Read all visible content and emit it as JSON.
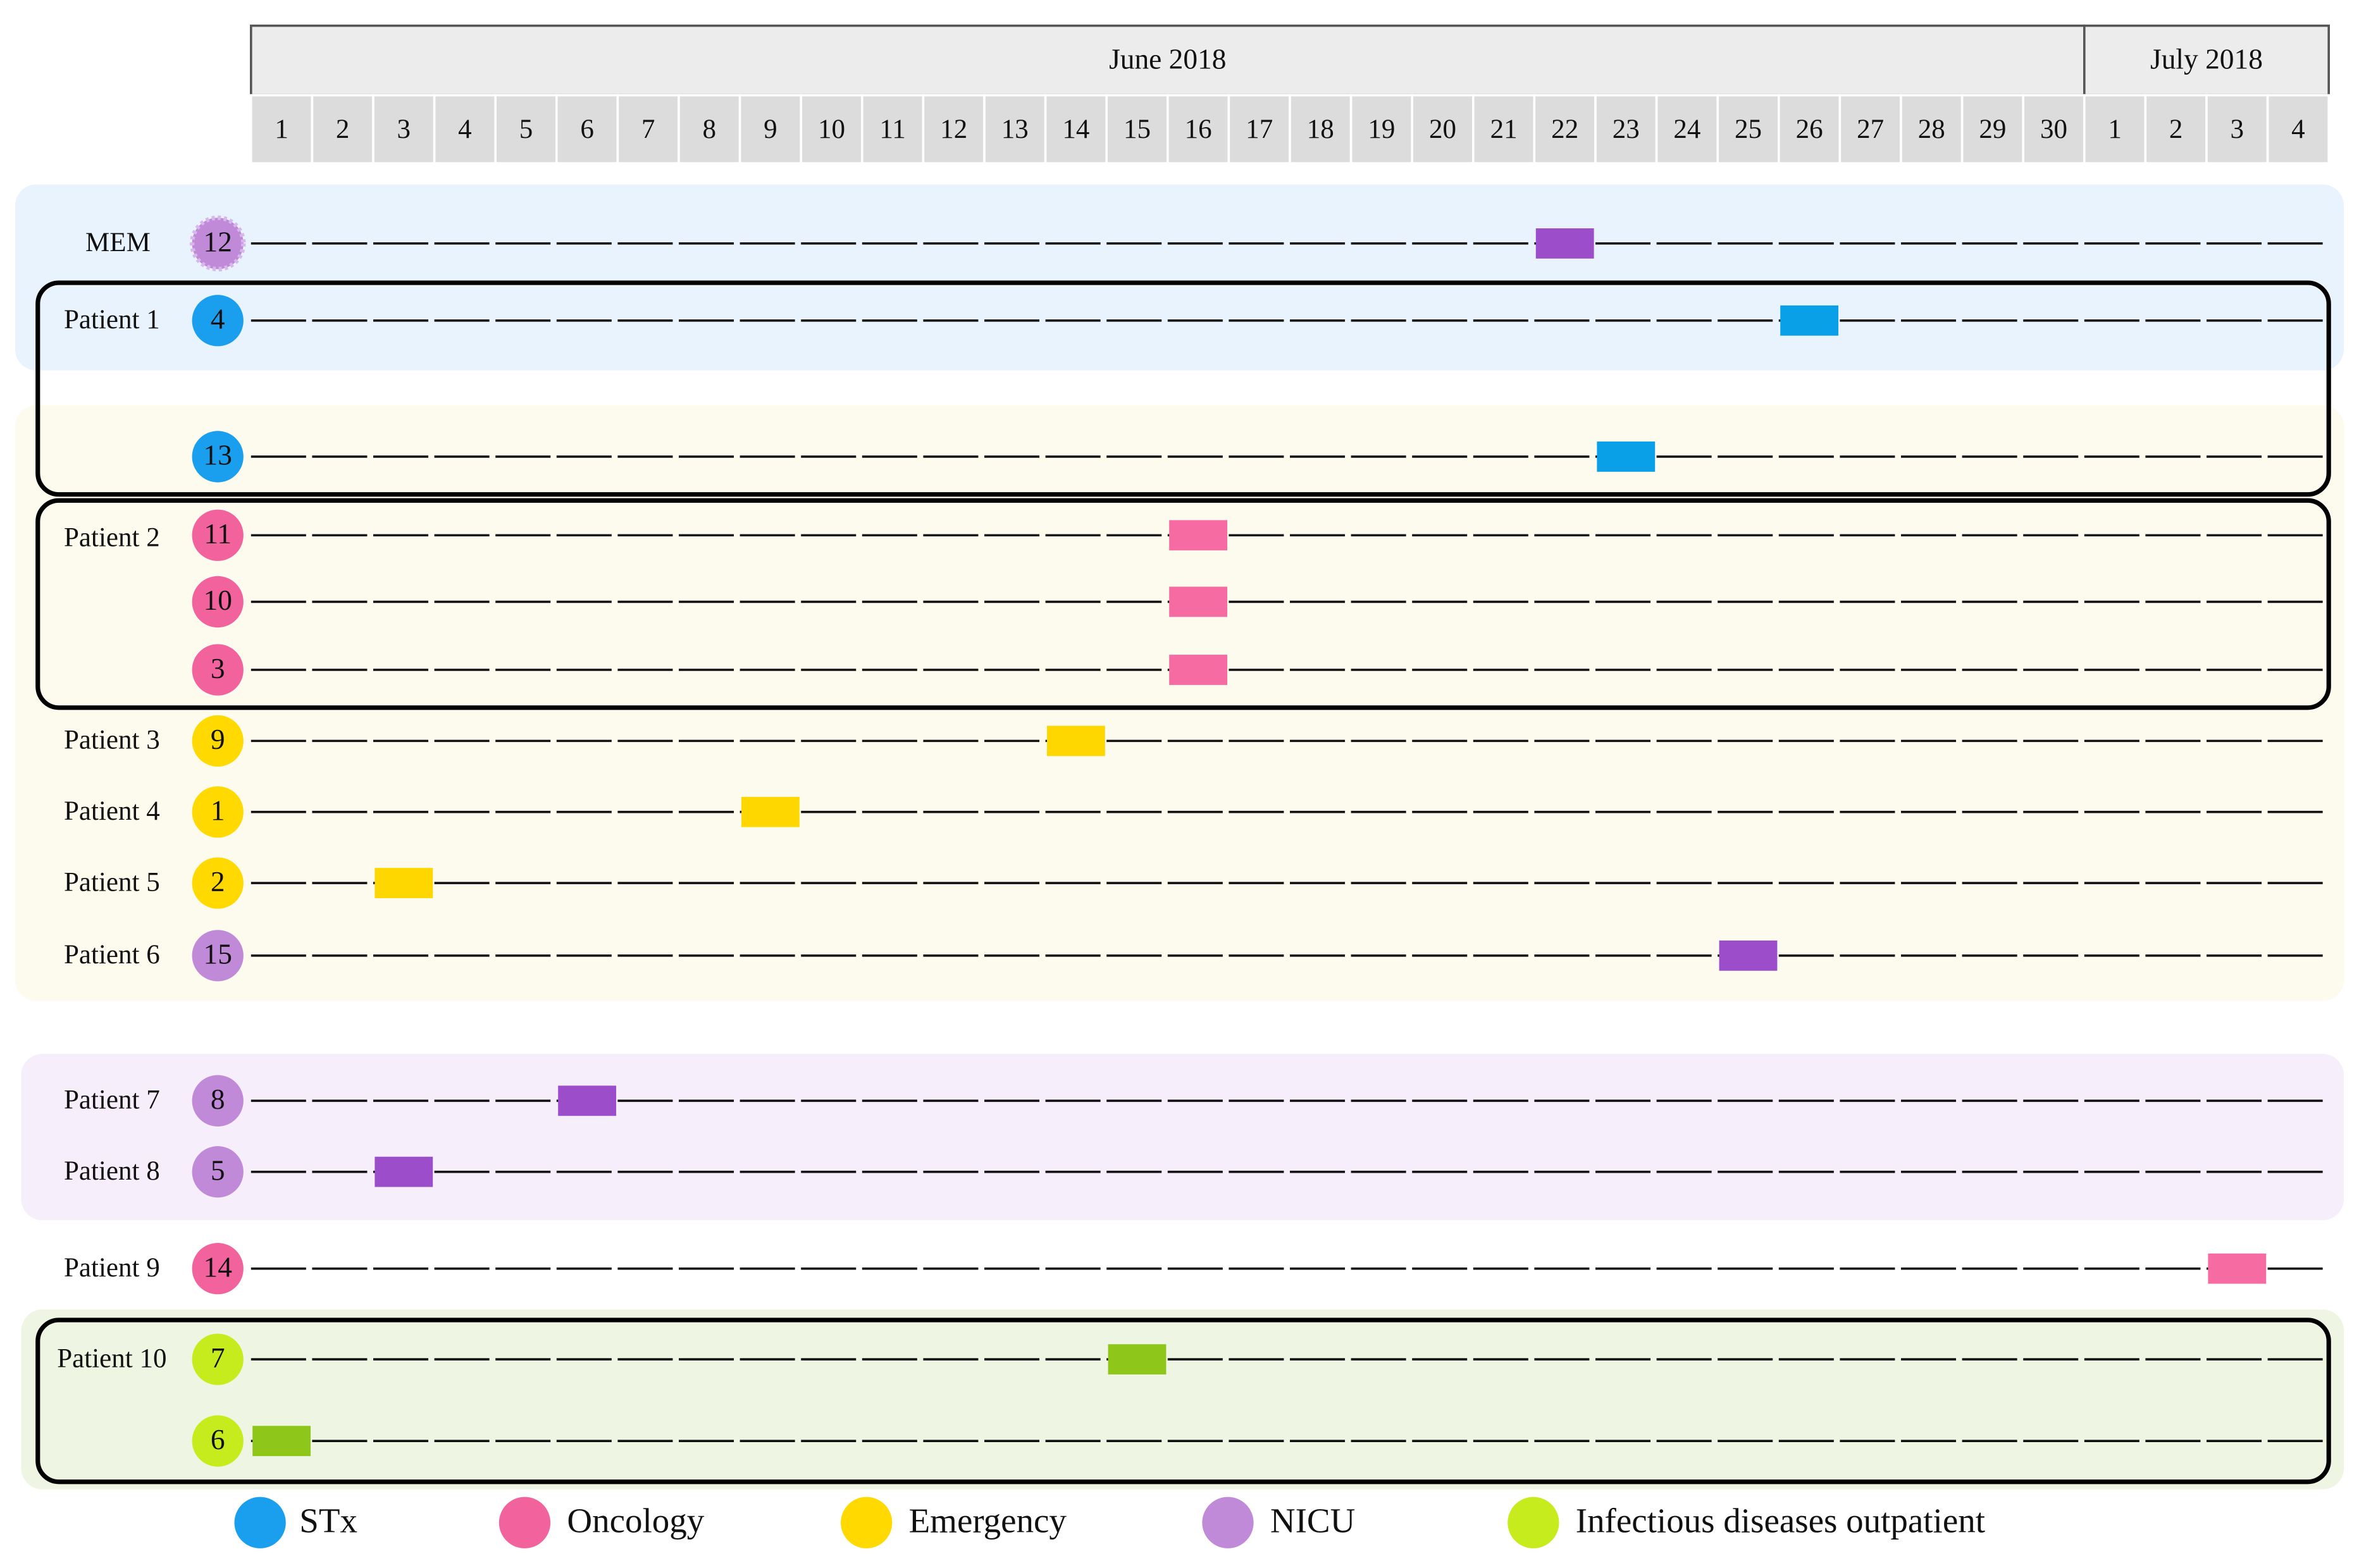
{
  "header": {
    "months": [
      {
        "label": "June 2018",
        "days": [
          1,
          2,
          3,
          4,
          5,
          6,
          7,
          8,
          9,
          10,
          11,
          12,
          13,
          14,
          15,
          16,
          17,
          18,
          19,
          20,
          21,
          22,
          23,
          24,
          25,
          26,
          27,
          28,
          29,
          30
        ]
      },
      {
        "label": "July 2018",
        "days": [
          1,
          2,
          3,
          4
        ]
      }
    ]
  },
  "legend": [
    {
      "name": "STx",
      "color": "#1a9fef",
      "bar_color": "#0aa0e8"
    },
    {
      "name": "Oncology",
      "color": "#f2639d",
      "bar_color": "#f76ba3"
    },
    {
      "name": "Emergency",
      "color": "#ffd900",
      "bar_color": "#ffd700"
    },
    {
      "name": "NICU",
      "color": "#c08ad8",
      "bar_color": "#9b4dca"
    },
    {
      "name": "Infectious diseases outpatient",
      "color": "#c6ec1e",
      "bar_color": "#8fc61a"
    }
  ],
  "rows": [
    {
      "label": "MEM",
      "number": 12,
      "category": 3,
      "month": "June 2018",
      "day": 22
    },
    {
      "label": "Patient 1",
      "number": 4,
      "category": 0,
      "month": "June 2018",
      "day": 26
    },
    {
      "number": 13,
      "category": 0,
      "month": "June 2018",
      "day": 23
    },
    {
      "label": "Patient 2",
      "number": 11,
      "category": 1,
      "month": "June 2018",
      "day": 16
    },
    {
      "number": 10,
      "category": 1,
      "month": "June 2018",
      "day": 16
    },
    {
      "number": 3,
      "category": 1,
      "month": "June 2018",
      "day": 16
    },
    {
      "label": "Patient 3",
      "number": 9,
      "category": 2,
      "month": "June 2018",
      "day": 14
    },
    {
      "label": "Patient 4",
      "number": 1,
      "category": 2,
      "month": "June 2018",
      "day": 9
    },
    {
      "label": "Patient 5",
      "number": 2,
      "category": 2,
      "month": "June 2018",
      "day": 3
    },
    {
      "label": "Patient 6",
      "number": 15,
      "category": 3,
      "month": "June 2018",
      "day": 25
    },
    {
      "label": "Patient 7",
      "number": 8,
      "category": 3,
      "month": "June 2018",
      "day": 6
    },
    {
      "label": "Patient 8",
      "number": 5,
      "category": 3,
      "month": "June 2018",
      "day": 3
    },
    {
      "label": "Patient 9",
      "number": 14,
      "category": 1,
      "month": "July 2018",
      "day": 3
    },
    {
      "label": "Patient 10",
      "number": 7,
      "category": 4,
      "month": "June 2018",
      "day": 15
    },
    {
      "number": 6,
      "category": 4,
      "month": "June 2018",
      "day": 1
    }
  ]
}
